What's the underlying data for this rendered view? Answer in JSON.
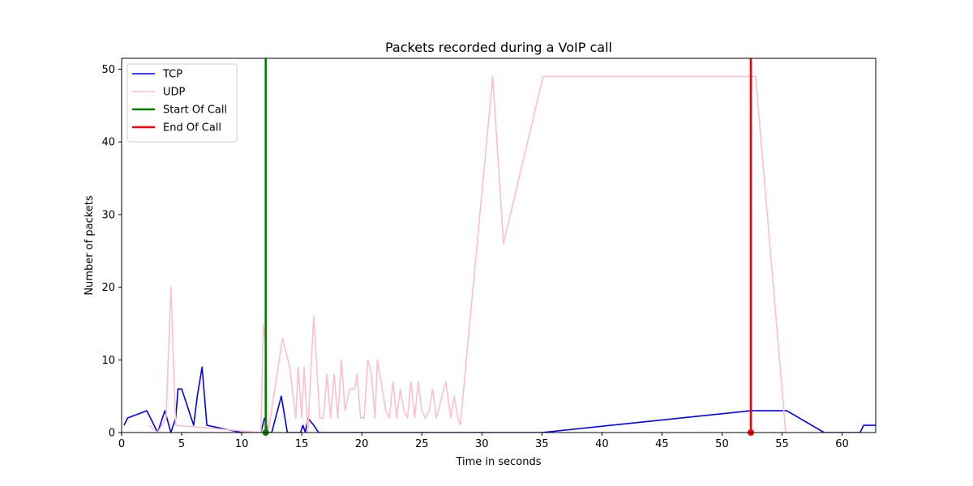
{
  "chart_data": {
    "type": "line",
    "title": "Packets recorded during a VoIP call",
    "xlabel": "Time in seconds",
    "ylabel": "Number of packets",
    "xlim": [
      0,
      62.8
    ],
    "ylim": [
      0,
      51.5
    ],
    "xticks": [
      0,
      5,
      10,
      15,
      20,
      25,
      30,
      35,
      40,
      45,
      50,
      55,
      60
    ],
    "yticks": [
      0,
      10,
      20,
      30,
      40,
      50
    ],
    "grid": false,
    "legend_position": "top-left",
    "series": [
      {
        "name": "TCP",
        "color": "#0000ff",
        "x": [
          0.2,
          0.5,
          2.1,
          3.0,
          3.6,
          4.1,
          4.5,
          4.7,
          5.0,
          6.0,
          6.3,
          6.7,
          7.1,
          10.0,
          11.6,
          11.9,
          12.2,
          12.5,
          13.3,
          13.8,
          14.9,
          15.1,
          15.3,
          15.5,
          16.0,
          16.4,
          35.0,
          52.4,
          55.4,
          58.5,
          61.5,
          61.8,
          62.8
        ],
        "y": [
          1,
          2,
          3,
          0,
          3,
          0,
          2,
          6,
          6,
          1,
          5,
          9,
          1,
          0,
          0,
          2,
          0,
          0,
          5,
          0,
          0,
          1,
          0,
          2,
          1,
          0,
          0,
          3,
          3,
          0,
          0,
          1,
          1
        ]
      },
      {
        "name": "UDP",
        "color": "#ffc0cb",
        "x": [
          2.3,
          3.0,
          3.7,
          4.1,
          4.5,
          11.6,
          11.8,
          12.0,
          12.2,
          13.4,
          14.0,
          14.5,
          14.7,
          15.0,
          15.2,
          15.5,
          16.0,
          16.5,
          16.8,
          17.1,
          17.4,
          17.7,
          18.0,
          18.3,
          18.6,
          19.0,
          19.4,
          19.6,
          19.9,
          20.2,
          20.5,
          20.8,
          21.1,
          21.3,
          22.0,
          22.3,
          22.6,
          22.9,
          23.2,
          23.5,
          23.8,
          24.1,
          24.4,
          24.7,
          25.0,
          25.3,
          25.6,
          25.9,
          26.2,
          27.0,
          27.4,
          27.7,
          28.0,
          28.2,
          30.9,
          31.8,
          35.1,
          52.8,
          55.3
        ],
        "y": [
          1,
          0,
          2,
          20,
          1,
          0,
          15,
          12,
          0,
          13,
          9,
          2,
          9,
          2,
          9,
          0,
          16,
          2,
          2,
          8,
          2,
          8,
          2,
          10,
          3,
          6,
          6,
          8,
          2,
          2,
          10,
          8,
          2,
          10,
          3,
          2,
          7,
          2,
          6,
          3,
          2,
          7,
          2,
          7,
          3,
          2,
          3,
          6,
          2,
          7,
          2,
          5,
          2,
          1,
          49,
          26,
          49,
          49,
          0
        ]
      }
    ],
    "vlines": [
      {
        "name": "Start Of Call",
        "x": 12.0,
        "color": "#008000"
      },
      {
        "name": "End Of Call",
        "x": 52.4,
        "color": "#ff0000"
      }
    ]
  }
}
